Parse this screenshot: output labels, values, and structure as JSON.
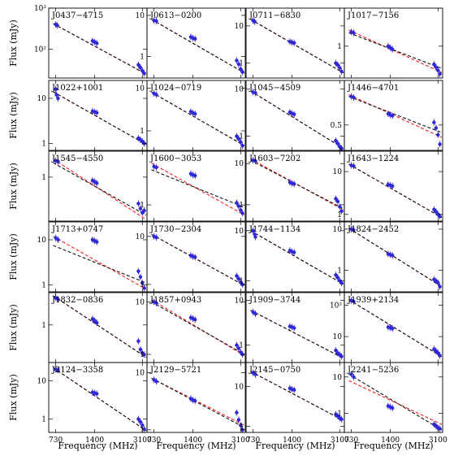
{
  "figure": {
    "ylabel": "Flux (mJy)",
    "xlabel": "Frequency (MHz)",
    "x_ticks": [
      "730",
      "1400",
      "3100"
    ],
    "point_color": "#2a2ad8",
    "fit_color_1": "#ff1e1e",
    "fit_color_2": "#111111"
  },
  "chart_data": [
    {
      "title": "J0437−4715",
      "type": "scatter",
      "x": [
        730,
        750,
        1350,
        1400,
        1450,
        2900,
        3000,
        3100,
        3200
      ],
      "y": [
        400,
        380,
        160,
        150,
        140,
        42,
        36,
        30,
        26
      ],
      "ylim": [
        20,
        1000
      ],
      "yticks": [
        100,
        1000
      ],
      "ytick_labels": [
        "10²",
        "10³"
      ],
      "fit": [
        [
          700,
          420,
          3300,
          25
        ],
        [
          700,
          420,
          3300,
          25
        ]
      ]
    },
    {
      "title": "J0613−0200",
      "type": "scatter",
      "x": [
        730,
        760,
        1350,
        1400,
        1450,
        2900,
        3000,
        3100,
        3200
      ],
      "y": [
        7.5,
        7.3,
        3.0,
        2.8,
        2.7,
        0.8,
        0.65,
        0.5,
        0.42
      ],
      "ylim": [
        0.3,
        15
      ],
      "yticks": [
        1,
        10
      ],
      "ytick_labels": [
        "1",
        "10"
      ],
      "fit": [
        [
          700,
          8,
          3300,
          0.4
        ],
        [
          700,
          8,
          3300,
          0.4
        ]
      ]
    },
    {
      "title": "J0711−6830",
      "type": "scatter",
      "x": [
        730,
        750,
        1350,
        1400,
        1450,
        2900,
        3000,
        3100,
        3200
      ],
      "y": [
        14,
        13,
        3.8,
        3.6,
        3.5,
        1.0,
        0.9,
        0.75,
        0.6
      ],
      "ylim": [
        0.4,
        30
      ],
      "yticks": [
        1,
        10
      ],
      "ytick_labels": [
        "1",
        "10"
      ],
      "fit": [
        [
          700,
          15,
          3300,
          0.55
        ],
        [
          700,
          15,
          3300,
          0.55
        ]
      ]
    },
    {
      "title": "J1017−7156",
      "type": "scatter",
      "x": [
        730,
        760,
        1350,
        1400,
        1450,
        2900,
        3000,
        3100,
        3200
      ],
      "y": [
        1.6,
        1.55,
        1.0,
        0.95,
        0.9,
        0.55,
        0.5,
        0.45,
        0.4
      ],
      "ylim": [
        0.35,
        3.5
      ],
      "yticks": [
        1
      ],
      "ytick_labels": [
        "1"
      ],
      "fit": [
        [
          700,
          1.7,
          3300,
          0.42
        ],
        [
          700,
          1.55,
          3300,
          0.48
        ]
      ]
    },
    {
      "title": "J1022+1001",
      "type": "scatter",
      "x": [
        730,
        740,
        760,
        1350,
        1400,
        1450,
        2900,
        3000,
        3100,
        3200
      ],
      "y": [
        16,
        12,
        10,
        5.2,
        5.0,
        4.8,
        1.3,
        1.2,
        1.1,
        1.0
      ],
      "ylim": [
        0.7,
        25
      ],
      "yticks": [
        1,
        10
      ],
      "ytick_labels": [
        "1",
        "10"
      ],
      "fit": [
        [
          700,
          14,
          3300,
          0.95
        ],
        [
          700,
          14,
          3300,
          0.95
        ]
      ]
    },
    {
      "title": "J1024−0719",
      "type": "scatter",
      "x": [
        730,
        760,
        1350,
        1400,
        1450,
        2900,
        3000,
        3100,
        3200
      ],
      "y": [
        7.5,
        7.0,
        2.8,
        2.6,
        2.5,
        0.75,
        0.65,
        0.55,
        0.45
      ],
      "ylim": [
        0.35,
        15
      ],
      "yticks": [
        1,
        10
      ],
      "ytick_labels": [
        "1",
        "10"
      ],
      "fit": [
        [
          700,
          8,
          3300,
          0.45
        ],
        [
          700,
          8,
          3300,
          0.45
        ]
      ]
    },
    {
      "title": "J1045−4509",
      "type": "scatter",
      "x": [
        730,
        760,
        1350,
        1400,
        1450,
        2900,
        3000,
        3100,
        3200
      ],
      "y": [
        8.5,
        8.2,
        3.2,
        3.0,
        2.9,
        0.8,
        0.7,
        0.6,
        0.55
      ],
      "ylim": [
        0.5,
        15
      ],
      "yticks": [
        1,
        10
      ],
      "ytick_labels": [
        "1",
        "10"
      ],
      "fit": [
        [
          700,
          9,
          3300,
          0.55
        ],
        [
          700,
          9,
          3300,
          0.55
        ]
      ]
    },
    {
      "title": "J1446−4701",
      "type": "scatter",
      "x": [
        730,
        760,
        1350,
        1400,
        1450,
        2900,
        3000,
        3100,
        3200
      ],
      "y": [
        1.4,
        1.35,
        0.75,
        0.72,
        0.7,
        0.55,
        0.45,
        0.35,
        0.25
      ],
      "ylim": [
        0.2,
        2.5
      ],
      "yticks": [
        0.5
      ],
      "ytick_labels": [
        "0.5"
      ],
      "fit": [
        [
          700,
          1.5,
          3300,
          0.32
        ],
        [
          700,
          1.4,
          3300,
          0.38
        ]
      ]
    },
    {
      "title": "J1545−4550",
      "type": "scatter",
      "x": [
        730,
        760,
        1350,
        1400,
        1450,
        2900,
        3000,
        3100,
        3200
      ],
      "y": [
        2.2,
        2.1,
        0.85,
        0.8,
        0.75,
        0.28,
        0.22,
        0.18,
        0.2
      ],
      "ylim": [
        0.12,
        3.5
      ],
      "yticks": [
        1
      ],
      "ytick_labels": [
        "1"
      ],
      "fit": [
        [
          700,
          2.4,
          3300,
          0.13
        ],
        [
          700,
          2.0,
          3300,
          0.16
        ]
      ]
    },
    {
      "title": "J1600−3053",
      "type": "scatter",
      "x": [
        730,
        760,
        1350,
        1400,
        1450,
        2900,
        3000,
        3100,
        3200
      ],
      "y": [
        5.2,
        5.0,
        3.8,
        3.6,
        3.5,
        1.1,
        0.95,
        0.8,
        0.7
      ],
      "ylim": [
        0.5,
        10
      ],
      "yticks": [
        1
      ],
      "ytick_labels": [
        "1"
      ],
      "fit": [
        [
          700,
          6,
          3300,
          0.65
        ],
        [
          700,
          4.5,
          3300,
          0.9
        ]
      ]
    },
    {
      "title": "J1603−7202",
      "type": "scatter",
      "x": [
        730,
        760,
        1350,
        1400,
        1450,
        2900,
        3000,
        3100,
        3200
      ],
      "y": [
        12,
        11.5,
        3.5,
        3.3,
        3.2,
        1.4,
        1.2,
        0.9,
        0.7
      ],
      "ylim": [
        0.4,
        20
      ],
      "yticks": [
        1,
        10
      ],
      "ytick_labels": [
        "1",
        "10"
      ],
      "fit": [
        [
          700,
          13,
          3300,
          0.75
        ],
        [
          700,
          12,
          3300,
          0.8
        ]
      ]
    },
    {
      "title": "J1643−1224",
      "type": "scatter",
      "x": [
        730,
        760,
        1350,
        1400,
        1450,
        2900,
        3000,
        3100,
        3200
      ],
      "y": [
        14,
        13.5,
        5.0,
        4.8,
        4.6,
        1.3,
        1.15,
        1.0,
        0.9
      ],
      "ylim": [
        0.7,
        30
      ],
      "yticks": [
        1,
        10
      ],
      "ytick_labels": [
        "1",
        "10"
      ],
      "fit": [
        [
          700,
          15,
          3300,
          0.85
        ],
        [
          700,
          15,
          3300,
          0.85
        ]
      ]
    },
    {
      "title": "J1713+0747",
      "type": "scatter",
      "x": [
        730,
        760,
        1350,
        1400,
        1450,
        2900,
        3000,
        3100,
        3200
      ],
      "y": [
        11,
        10,
        10,
        9.5,
        9.0,
        2.0,
        1.5,
        1.1,
        0.85
      ],
      "ylim": [
        0.7,
        25
      ],
      "yticks": [
        1,
        10
      ],
      "ytick_labels": [
        "1",
        "10"
      ],
      "fit": [
        [
          700,
          12,
          3300,
          0.8
        ],
        [
          700,
          7.5,
          3300,
          1.1
        ]
      ]
    },
    {
      "title": "J1730−2304",
      "type": "scatter",
      "x": [
        730,
        760,
        1350,
        1400,
        1450,
        2900,
        3000,
        3100,
        3200
      ],
      "y": [
        10,
        9.5,
        4.0,
        3.8,
        3.7,
        1.5,
        1.3,
        1.1,
        1.0
      ],
      "ylim": [
        0.7,
        20
      ],
      "yticks": [
        1,
        10
      ],
      "ytick_labels": [
        "1",
        "10"
      ],
      "fit": [
        [
          700,
          11,
          3300,
          0.95
        ],
        [
          700,
          11,
          3300,
          0.95
        ]
      ]
    },
    {
      "title": "J1744−1134",
      "type": "scatter",
      "x": [
        730,
        750,
        760,
        1350,
        1400,
        1450,
        2900,
        3000,
        3100,
        3200
      ],
      "y": [
        10,
        8.5,
        7.5,
        4.0,
        3.8,
        3.7,
        1.3,
        1.15,
        1.0,
        0.9
      ],
      "ylim": [
        0.6,
        15
      ],
      "yticks": [
        1,
        10
      ],
      "ytick_labels": [
        "1",
        "10"
      ],
      "fit": [
        [
          700,
          10,
          3300,
          0.85
        ],
        [
          700,
          10,
          3300,
          0.85
        ]
      ]
    },
    {
      "title": "J1824−2452",
      "type": "scatter",
      "x": [
        730,
        760,
        1350,
        1400,
        1450,
        2900,
        3000,
        3100,
        3200
      ],
      "y": [
        10,
        9.5,
        2.5,
        2.4,
        2.3,
        0.6,
        0.55,
        0.5,
        0.4
      ],
      "ylim": [
        0.3,
        15
      ],
      "yticks": [
        1,
        10
      ],
      "ytick_labels": [
        "1",
        "10"
      ],
      "fit": [
        [
          700,
          10.5,
          3300,
          0.4
        ],
        [
          700,
          10.5,
          3300,
          0.4
        ]
      ]
    },
    {
      "title": "J1832−0836",
      "type": "scatter",
      "x": [
        730,
        760,
        1350,
        1400,
        1450,
        2900,
        3000,
        3100,
        3200
      ],
      "y": [
        3.2,
        3.0,
        1.3,
        1.2,
        1.1,
        0.5,
        0.35,
        0.3,
        0.28
      ],
      "ylim": [
        0.2,
        4
      ],
      "yticks": [
        1
      ],
      "ytick_labels": [
        "1"
      ],
      "fit": [
        [
          700,
          3.5,
          3300,
          0.25
        ],
        [
          700,
          3.5,
          3300,
          0.25
        ]
      ]
    },
    {
      "title": "J1857+0943",
      "type": "scatter",
      "x": [
        730,
        760,
        1350,
        1400,
        1450,
        2900,
        3000,
        3100,
        3200
      ],
      "y": [
        10,
        9.5,
        5.0,
        4.8,
        4.6,
        1.5,
        1.3,
        1.1,
        1.0
      ],
      "ylim": [
        0.7,
        15
      ],
      "yticks": [
        1,
        10
      ],
      "ytick_labels": [
        "1",
        "10"
      ],
      "fit": [
        [
          700,
          11,
          3300,
          0.95
        ],
        [
          700,
          10,
          3300,
          1.0
        ]
      ]
    },
    {
      "title": "J1909−3744",
      "type": "scatter",
      "x": [
        730,
        760,
        1350,
        1400,
        1450,
        2900,
        3000,
        3100,
        3200
      ],
      "y": [
        5.5,
        5.0,
        2.6,
        2.5,
        2.4,
        0.75,
        0.65,
        0.6,
        0.55
      ],
      "ylim": [
        0.4,
        15
      ],
      "yticks": [
        1,
        10
      ],
      "ytick_labels": [
        "1",
        "10"
      ],
      "fit": [
        [
          700,
          6,
          3300,
          0.5
        ],
        [
          700,
          6,
          3300,
          0.5
        ]
      ]
    },
    {
      "title": "J1939+2134",
      "type": "scatter",
      "x": [
        730,
        760,
        1350,
        1400,
        1450,
        2900,
        3000,
        3100,
        3200
      ],
      "y": [
        140,
        130,
        20,
        19,
        18,
        4,
        3.5,
        3,
        2.5
      ],
      "ylim": [
        1.5,
        250
      ],
      "yticks": [
        10,
        100
      ],
      "ytick_labels": [
        "10",
        "10²"
      ],
      "fit": [
        [
          700,
          150,
          3300,
          2.3
        ],
        [
          700,
          150,
          3300,
          2.3
        ]
      ]
    },
    {
      "title": "J2124−3358",
      "type": "scatter",
      "x": [
        730,
        760,
        1350,
        1400,
        1450,
        2900,
        3000,
        3100,
        3200
      ],
      "y": [
        20,
        19,
        5.0,
        4.8,
        4.6,
        1.0,
        0.85,
        0.7,
        0.55
      ],
      "ylim": [
        0.45,
        30
      ],
      "yticks": [
        1,
        10
      ],
      "ytick_labels": [
        "1",
        "10"
      ],
      "fit": [
        [
          700,
          22,
          3300,
          0.5
        ],
        [
          700,
          22,
          3300,
          0.5
        ]
      ]
    },
    {
      "title": "J2129−5721",
      "type": "scatter",
      "x": [
        730,
        760,
        1350,
        1400,
        1450,
        2900,
        3000,
        3100,
        3200
      ],
      "y": [
        7.5,
        7.0,
        3.5,
        3.3,
        3.2,
        2.0,
        1.5,
        1.2,
        1.0
      ],
      "ylim": [
        0.9,
        15
      ],
      "yticks": [
        1,
        10
      ],
      "ytick_labels": [
        "1",
        "10"
      ],
      "fit": [
        [
          700,
          8,
          3300,
          1.2
        ],
        [
          700,
          8,
          3300,
          1.1
        ]
      ]
    },
    {
      "title": "J2145−0750",
      "type": "scatter",
      "x": [
        730,
        760,
        1350,
        1400,
        1450,
        2900,
        3000,
        3100,
        3200
      ],
      "y": [
        22,
        20,
        9,
        8.5,
        8.2,
        2.0,
        1.8,
        1.6,
        1.5
      ],
      "ylim": [
        0.7,
        40
      ],
      "yticks": [
        1,
        10
      ],
      "ytick_labels": [
        "1",
        "10"
      ],
      "fit": [
        [
          700,
          24,
          3300,
          1.4
        ],
        [
          700,
          24,
          3300,
          1.4
        ]
      ]
    },
    {
      "title": "J2241−5236",
      "type": "scatter",
      "x": [
        730,
        760,
        1350,
        1400,
        1450,
        2900,
        3000,
        3100,
        3200
      ],
      "y": [
        12,
        10,
        1.6,
        1.5,
        1.4,
        0.5,
        0.45,
        0.4,
        0.38
      ],
      "ylim": [
        0.3,
        25
      ],
      "yticks": [
        1,
        10
      ],
      "ytick_labels": [
        "1",
        "10"
      ],
      "fit": [
        [
          700,
          8,
          3300,
          0.5
        ],
        [
          700,
          12,
          3300,
          0.35
        ]
      ]
    }
  ]
}
